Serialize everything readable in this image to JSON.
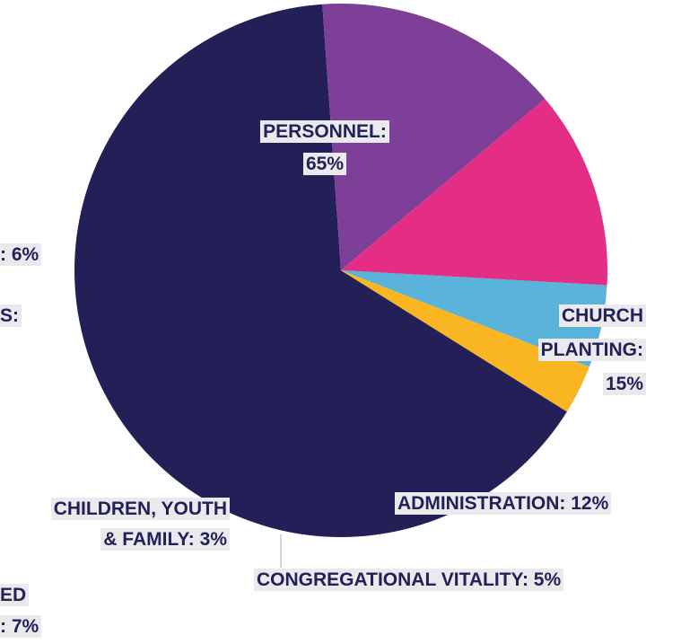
{
  "chart_data": {
    "type": "pie",
    "slices": [
      {
        "label_lines": [
          "PERSONNEL:",
          "65%"
        ],
        "value": 65,
        "color": "#232058"
      },
      {
        "label_lines": [
          "CHURCH",
          "PLANTING:",
          "15%"
        ],
        "value": 15,
        "color": "#7e3f98"
      },
      {
        "label_lines": [
          "ADMINISTRATION: 12%"
        ],
        "value": 12,
        "color": "#e42d84"
      },
      {
        "label_lines": [
          "CONGREGATIONAL VITALITY: 5%"
        ],
        "value": 5,
        "color": "#59b3da"
      },
      {
        "label_lines": [
          "CHILDREN, YOUTH",
          "& FAMILY: 3%"
        ],
        "value": 3,
        "color": "#f9b522"
      }
    ],
    "cutoff_labels": [
      {
        "lines": [
          ": 6%"
        ]
      },
      {
        "lines": [
          "S:"
        ]
      },
      {
        "lines": [
          "ED",
          ": 7%"
        ]
      }
    ]
  }
}
